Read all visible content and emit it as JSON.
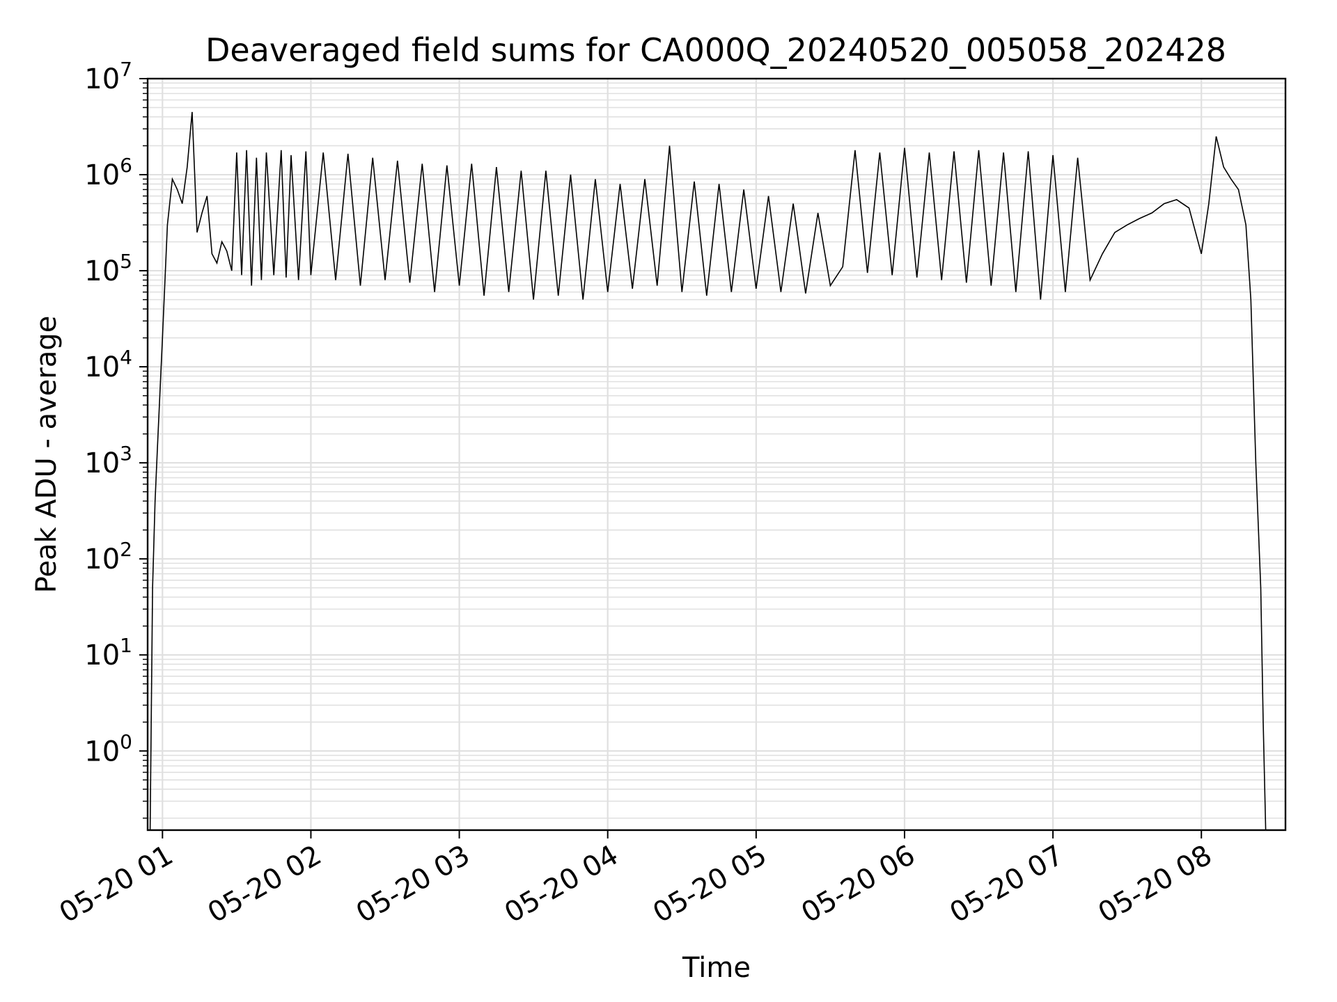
{
  "chart_data": {
    "type": "line",
    "title": "Deaveraged field sums for CA000Q_20240520_005058_202428",
    "xlabel": "Time",
    "ylabel": "Peak ADU - average",
    "yscale": "log",
    "ylim": [
      0.15,
      10000000
    ],
    "xlim": [
      "2024-05-20 00:54",
      "2024-05-20 08:34"
    ],
    "grid": true,
    "line_color": "#000000",
    "grid_color": "#e0e0e0",
    "x_ticks": [
      "05-20 01",
      "05-20 02",
      "05-20 03",
      "05-20 04",
      "05-20 05",
      "05-20 06",
      "05-20 07",
      "05-20 08"
    ],
    "y_ticks": [
      {
        "base": "10",
        "exp": "0"
      },
      {
        "base": "10",
        "exp": "1"
      },
      {
        "base": "10",
        "exp": "2"
      },
      {
        "base": "10",
        "exp": "3"
      },
      {
        "base": "10",
        "exp": "4"
      },
      {
        "base": "10",
        "exp": "5"
      },
      {
        "base": "10",
        "exp": "6"
      },
      {
        "base": "10",
        "exp": "7"
      }
    ],
    "series": [
      {
        "x": [
          "00:55",
          "00:56",
          "00:57",
          "00:58",
          "01:00",
          "01:02",
          "01:04",
          "01:06",
          "01:08",
          "01:10",
          "01:12",
          "01:14",
          "01:16",
          "01:18",
          "01:20",
          "01:22",
          "01:24",
          "01:25",
          "01:26",
          "01:28",
          "01:30",
          "01:32",
          "01:34",
          "01:36",
          "01:38",
          "01:40",
          "01:42",
          "01:45",
          "01:48",
          "01:50",
          "01:52",
          "01:55",
          "01:58",
          "02:00",
          "02:05",
          "02:10",
          "02:15",
          "02:20",
          "02:25",
          "02:30",
          "02:35",
          "02:40",
          "02:45",
          "02:50",
          "02:55",
          "03:00",
          "03:05",
          "03:10",
          "03:15",
          "03:20",
          "03:25",
          "03:30",
          "03:35",
          "03:40",
          "03:45",
          "03:50",
          "03:55",
          "04:00",
          "04:05",
          "04:10",
          "04:15",
          "04:20",
          "04:25",
          "04:30",
          "04:35",
          "04:40",
          "04:45",
          "04:50",
          "04:55",
          "05:00",
          "05:05",
          "05:10",
          "05:15",
          "05:20",
          "05:25",
          "05:30",
          "05:35",
          "05:40",
          "05:45",
          "05:50",
          "05:55",
          "06:00",
          "06:05",
          "06:10",
          "06:15",
          "06:20",
          "06:25",
          "06:30",
          "06:35",
          "06:40",
          "06:45",
          "06:50",
          "06:55",
          "07:00",
          "07:05",
          "07:10",
          "07:15",
          "07:20",
          "07:25",
          "07:30",
          "07:35",
          "07:40",
          "07:45",
          "07:50",
          "07:55",
          "08:00",
          "08:03",
          "08:06",
          "08:09",
          "08:12",
          "08:15",
          "08:18",
          "08:20",
          "08:22",
          "08:24",
          "08:25",
          "08:26"
        ],
        "y": [
          0.15,
          50,
          400,
          1500,
          20000,
          300000,
          900000,
          700000,
          500000,
          1200000,
          4500000,
          250000,
          400000,
          600000,
          150000,
          120000,
          200000,
          180000,
          160000,
          100000,
          1700000,
          90000,
          1800000,
          70000,
          1500000,
          80000,
          1700000,
          90000,
          1800000,
          85000,
          1600000,
          80000,
          1750000,
          90000,
          1700000,
          80000,
          1650000,
          70000,
          1500000,
          80000,
          1400000,
          75000,
          1300000,
          60000,
          1250000,
          70000,
          1300000,
          55000,
          1200000,
          60000,
          1100000,
          50000,
          1100000,
          55000,
          1000000,
          50000,
          900000,
          60000,
          800000,
          65000,
          900000,
          70000,
          2000000,
          60000,
          850000,
          55000,
          800000,
          60000,
          700000,
          65000,
          600000,
          60000,
          500000,
          58000,
          400000,
          70000,
          110000,
          1800000,
          95000,
          1700000,
          90000,
          1900000,
          85000,
          1700000,
          80000,
          1750000,
          75000,
          1800000,
          70000,
          1700000,
          60000,
          1750000,
          50000,
          1600000,
          60000,
          1500000,
          80000,
          150000,
          250000,
          300000,
          350000,
          400000,
          500000,
          550000,
          450000,
          150000,
          500000,
          2500000,
          1200000,
          900000,
          700000,
          300000,
          50000,
          1000,
          50,
          2,
          0.15
        ]
      }
    ]
  }
}
